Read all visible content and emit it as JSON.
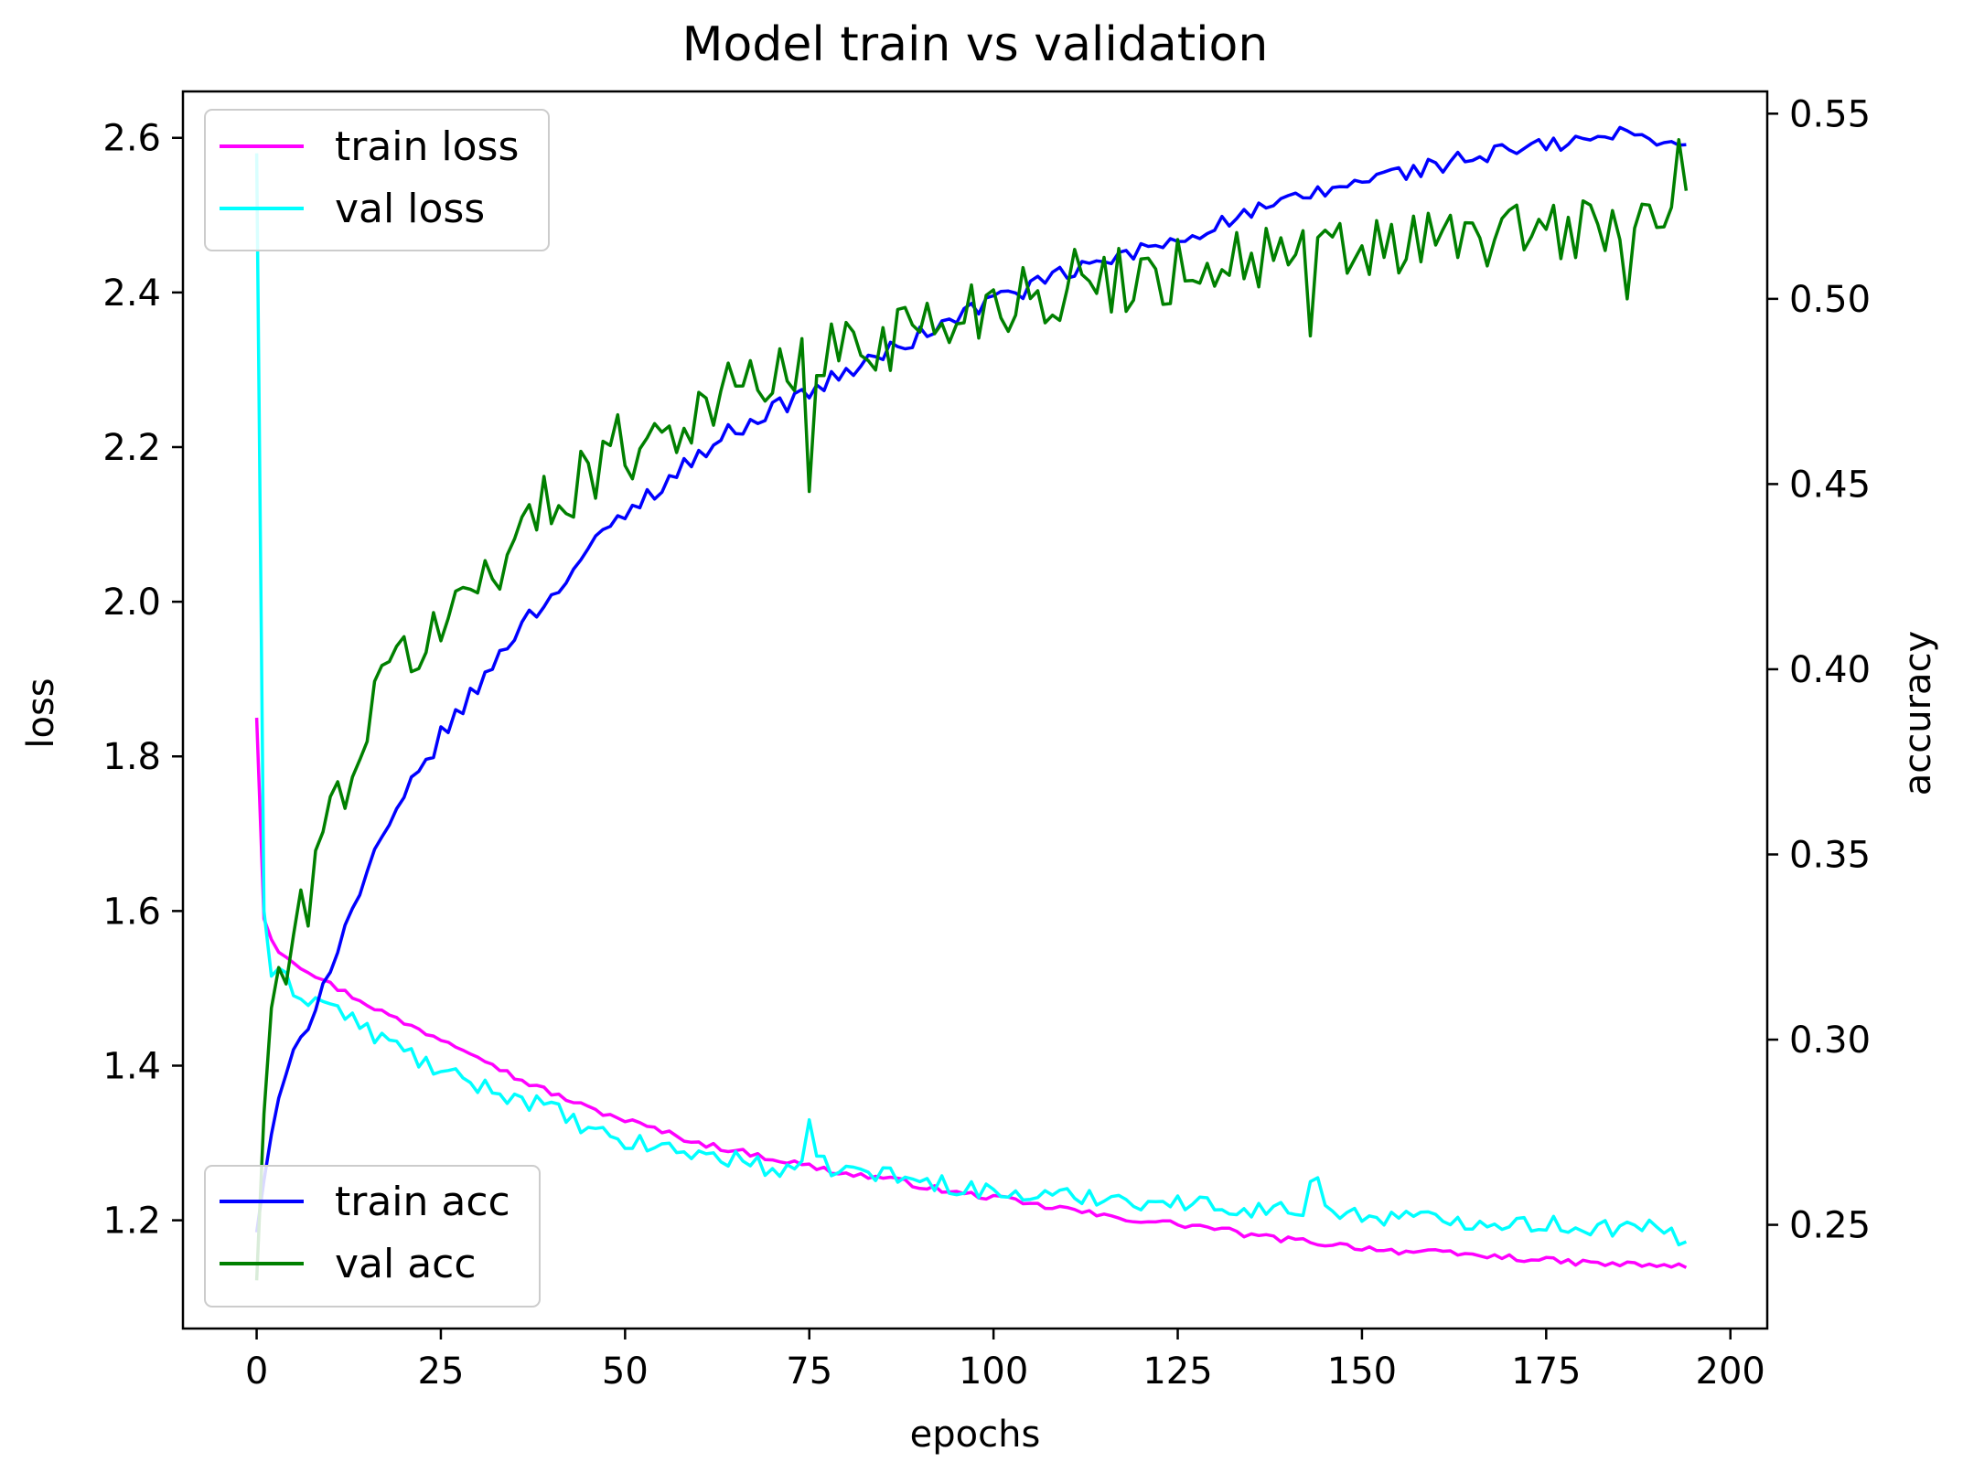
{
  "chart_data": {
    "type": "line",
    "title": "Model train vs validation",
    "xlabel": "epochs",
    "ylabel_left": "loss",
    "ylabel_right": "accuracy",
    "xlim": [
      -10,
      205
    ],
    "ylim_left": [
      1.06,
      2.66
    ],
    "ylim_right": [
      0.222,
      0.556
    ],
    "x_ticks": [
      0,
      25,
      50,
      75,
      100,
      125,
      150,
      175,
      200
    ],
    "x_tick_labels": [
      "0",
      "25",
      "50",
      "75",
      "100",
      "125",
      "150",
      "175",
      "200"
    ],
    "y_left_ticks": [
      1.2,
      1.4,
      1.6,
      1.8,
      2.0,
      2.2,
      2.4,
      2.6
    ],
    "y_left_tick_labels": [
      "1.2",
      "1.4",
      "1.6",
      "1.8",
      "2.0",
      "2.2",
      "2.4",
      "2.6"
    ],
    "y_right_ticks": [
      0.25,
      0.3,
      0.35,
      0.4,
      0.45,
      0.5,
      0.55
    ],
    "y_right_tick_labels": [
      "0.25",
      "0.30",
      "0.35",
      "0.40",
      "0.45",
      "0.50",
      "0.55"
    ],
    "grid": false,
    "legend_top": {
      "placement": "upper-left",
      "entries": [
        "train loss",
        "val loss"
      ]
    },
    "legend_bottom": {
      "placement": "lower-left",
      "entries": [
        "train acc",
        "val acc"
      ]
    },
    "n_epochs": 195,
    "series": [
      {
        "name": "train loss",
        "axis": "left",
        "color": "#ff00ff",
        "anchors": [
          [
            0,
            1.85
          ],
          [
            1,
            1.59
          ],
          [
            2,
            1.565
          ],
          [
            3,
            1.55
          ],
          [
            5,
            1.535
          ],
          [
            10,
            1.505
          ],
          [
            15,
            1.48
          ],
          [
            20,
            1.455
          ],
          [
            25,
            1.435
          ],
          [
            30,
            1.415
          ],
          [
            35,
            1.385
          ],
          [
            40,
            1.365
          ],
          [
            45,
            1.345
          ],
          [
            50,
            1.33
          ],
          [
            55,
            1.315
          ],
          [
            60,
            1.3
          ],
          [
            65,
            1.29
          ],
          [
            70,
            1.28
          ],
          [
            75,
            1.27
          ],
          [
            80,
            1.26
          ],
          [
            85,
            1.255
          ],
          [
            90,
            1.245
          ],
          [
            95,
            1.235
          ],
          [
            100,
            1.23
          ],
          [
            105,
            1.22
          ],
          [
            110,
            1.215
          ],
          [
            115,
            1.205
          ],
          [
            120,
            1.2
          ],
          [
            125,
            1.195
          ],
          [
            130,
            1.19
          ],
          [
            135,
            1.18
          ],
          [
            140,
            1.175
          ],
          [
            145,
            1.17
          ],
          [
            150,
            1.165
          ],
          [
            155,
            1.16
          ],
          [
            160,
            1.158
          ],
          [
            165,
            1.155
          ],
          [
            170,
            1.152
          ],
          [
            175,
            1.148
          ],
          [
            180,
            1.145
          ],
          [
            185,
            1.143
          ],
          [
            190,
            1.142
          ],
          [
            194,
            1.14
          ]
        ],
        "noise": 0.004
      },
      {
        "name": "val loss",
        "axis": "left",
        "color": "#00ffff",
        "anchors": [
          [
            0,
            2.58
          ],
          [
            1,
            1.6
          ],
          [
            2,
            1.52
          ],
          [
            4,
            1.51
          ],
          [
            6,
            1.49
          ],
          [
            10,
            1.48
          ],
          [
            15,
            1.445
          ],
          [
            20,
            1.42
          ],
          [
            25,
            1.39
          ],
          [
            30,
            1.375
          ],
          [
            35,
            1.36
          ],
          [
            40,
            1.345
          ],
          [
            45,
            1.315
          ],
          [
            50,
            1.3
          ],
          [
            55,
            1.295
          ],
          [
            60,
            1.285
          ],
          [
            65,
            1.28
          ],
          [
            70,
            1.265
          ],
          [
            75,
            1.275
          ],
          [
            80,
            1.265
          ],
          [
            85,
            1.26
          ],
          [
            90,
            1.25
          ],
          [
            95,
            1.245
          ],
          [
            100,
            1.235
          ],
          [
            105,
            1.232
          ],
          [
            110,
            1.23
          ],
          [
            115,
            1.232
          ],
          [
            120,
            1.225
          ],
          [
            125,
            1.222
          ],
          [
            130,
            1.22
          ],
          [
            135,
            1.215
          ],
          [
            140,
            1.212
          ],
          [
            145,
            1.215
          ],
          [
            150,
            1.205
          ],
          [
            155,
            1.205
          ],
          [
            160,
            1.2
          ],
          [
            165,
            1.2
          ],
          [
            170,
            1.198
          ],
          [
            175,
            1.195
          ],
          [
            180,
            1.192
          ],
          [
            185,
            1.19
          ],
          [
            190,
            1.188
          ],
          [
            194,
            1.17
          ]
        ],
        "noise": 0.012,
        "spikes": [
          [
            75,
            1.33
          ],
          [
            143,
            1.25
          ],
          [
            144,
            1.255
          ]
        ]
      },
      {
        "name": "train acc",
        "axis": "right",
        "color": "#0000ff",
        "anchors": [
          [
            0,
            0.248
          ],
          [
            1,
            0.262
          ],
          [
            2,
            0.275
          ],
          [
            4,
            0.29
          ],
          [
            6,
            0.3
          ],
          [
            8,
            0.31
          ],
          [
            10,
            0.32
          ],
          [
            12,
            0.33
          ],
          [
            15,
            0.345
          ],
          [
            20,
            0.365
          ],
          [
            25,
            0.382
          ],
          [
            30,
            0.395
          ],
          [
            35,
            0.41
          ],
          [
            40,
            0.42
          ],
          [
            45,
            0.432
          ],
          [
            50,
            0.442
          ],
          [
            55,
            0.45
          ],
          [
            60,
            0.458
          ],
          [
            65,
            0.465
          ],
          [
            70,
            0.47
          ],
          [
            75,
            0.475
          ],
          [
            80,
            0.48
          ],
          [
            85,
            0.485
          ],
          [
            90,
            0.49
          ],
          [
            95,
            0.495
          ],
          [
            100,
            0.5
          ],
          [
            105,
            0.503
          ],
          [
            110,
            0.507
          ],
          [
            115,
            0.51
          ],
          [
            120,
            0.513
          ],
          [
            125,
            0.516
          ],
          [
            130,
            0.52
          ],
          [
            135,
            0.523
          ],
          [
            140,
            0.526
          ],
          [
            145,
            0.529
          ],
          [
            150,
            0.532
          ],
          [
            155,
            0.534
          ],
          [
            160,
            0.536
          ],
          [
            165,
            0.538
          ],
          [
            170,
            0.54
          ],
          [
            175,
            0.541
          ],
          [
            180,
            0.543
          ],
          [
            185,
            0.544
          ],
          [
            190,
            0.544
          ],
          [
            194,
            0.54
          ]
        ],
        "noise": 0.0025
      },
      {
        "name": "val acc",
        "axis": "right",
        "color": "#008000",
        "anchors": [
          [
            0,
            0.235
          ],
          [
            1,
            0.28
          ],
          [
            2,
            0.31
          ],
          [
            3,
            0.315
          ],
          [
            5,
            0.322
          ],
          [
            8,
            0.35
          ],
          [
            10,
            0.36
          ],
          [
            15,
            0.385
          ],
          [
            20,
            0.405
          ],
          [
            25,
            0.41
          ],
          [
            30,
            0.425
          ],
          [
            35,
            0.435
          ],
          [
            40,
            0.445
          ],
          [
            45,
            0.455
          ],
          [
            50,
            0.46
          ],
          [
            55,
            0.465
          ],
          [
            60,
            0.47
          ],
          [
            65,
            0.475
          ],
          [
            70,
            0.48
          ],
          [
            75,
            0.48
          ],
          [
            80,
            0.488
          ],
          [
            85,
            0.49
          ],
          [
            90,
            0.492
          ],
          [
            95,
            0.495
          ],
          [
            100,
            0.5
          ],
          [
            105,
            0.502
          ],
          [
            110,
            0.503
          ],
          [
            115,
            0.505
          ],
          [
            120,
            0.506
          ],
          [
            125,
            0.508
          ],
          [
            130,
            0.51
          ],
          [
            135,
            0.511
          ],
          [
            140,
            0.512
          ],
          [
            145,
            0.512
          ],
          [
            150,
            0.513
          ],
          [
            155,
            0.514
          ],
          [
            160,
            0.515
          ],
          [
            165,
            0.516
          ],
          [
            170,
            0.517
          ],
          [
            175,
            0.518
          ],
          [
            180,
            0.519
          ],
          [
            185,
            0.52
          ],
          [
            190,
            0.522
          ],
          [
            194,
            0.538
          ]
        ],
        "noise": 0.01,
        "spikes": [
          [
            75,
            0.448
          ],
          [
            143,
            0.49
          ],
          [
            186,
            0.5
          ]
        ]
      }
    ]
  }
}
